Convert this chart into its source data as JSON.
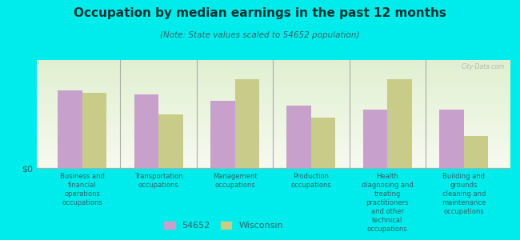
{
  "title": "Occupation by median earnings in the past 12 months",
  "subtitle": "(Note: State values scaled to 54652 population)",
  "categories": [
    "Business and\nfinancial\noperations\noccupations",
    "Transportation\noccupations",
    "Management\noccupations",
    "Production\noccupations",
    "Health\ndiagnosing and\ntreating\npractitioners\nand other\ntechnical\noccupations",
    "Building and\ngrounds\ncleaning and\nmaintenance\noccupations"
  ],
  "values_54652": [
    72,
    68,
    62,
    58,
    54,
    54
  ],
  "values_wisconsin": [
    70,
    50,
    82,
    47,
    82,
    30
  ],
  "color_54652": "#c8a0cc",
  "color_wisconsin": "#c8cc88",
  "background_color": "#00ecec",
  "ylabel": "$0",
  "legend_label_1": "54652",
  "legend_label_2": "Wisconsin",
  "bar_width": 0.32,
  "title_color": "#003333",
  "subtitle_color": "#336666",
  "label_color": "#336666",
  "watermark": "City-Data.com"
}
